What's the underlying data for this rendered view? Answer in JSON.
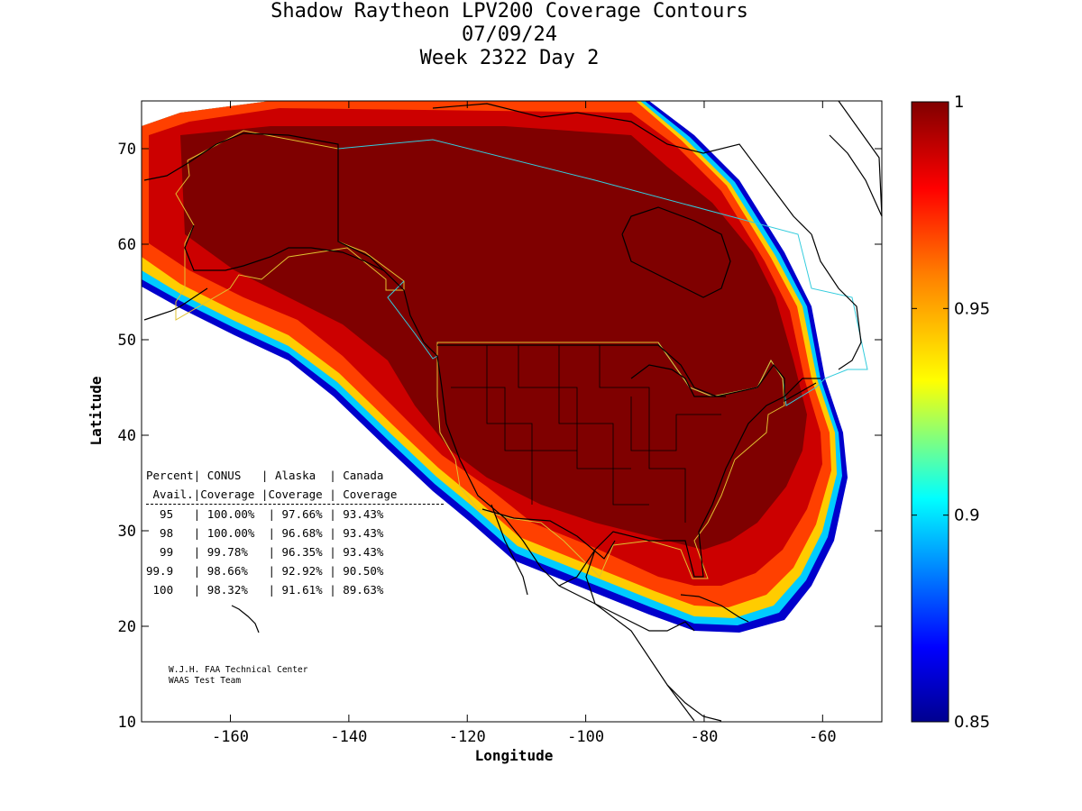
{
  "title": {
    "line1": "Shadow Raytheon LPV200 Coverage Contours",
    "line2": "07/09/24",
    "line3": "Week 2322 Day 2"
  },
  "chart_data": {
    "type": "heatmap",
    "title": "Shadow Raytheon LPV200 Coverage Contours",
    "xlabel": "Longitude",
    "ylabel": "Latitude",
    "xlim": [
      -175,
      -50
    ],
    "ylim": [
      10,
      75
    ],
    "x_ticks": [
      -160,
      -140,
      -120,
      -100,
      -80,
      -60
    ],
    "y_ticks": [
      10,
      20,
      30,
      40,
      50,
      60,
      70
    ],
    "colorbar": {
      "min": 0.85,
      "max": 1,
      "ticks": [
        0.85,
        0.9,
        0.95,
        1
      ],
      "tick_labels": [
        "0.85",
        "0.9",
        "0.95",
        "1"
      ]
    },
    "regions": [
      "CONUS",
      "Alaska",
      "Canada"
    ]
  },
  "stats_table": {
    "header1": "Percent| CONUS   | Alaska  | Canada",
    "header2": " Avail.|Coverage |Coverage | Coverage",
    "rows": [
      "  95   | 100.00%  | 97.66% | 93.43%",
      "  98   | 100.00%  | 96.68% | 93.43%",
      "  99   | 99.78%   | 96.35% | 93.43%",
      "99.9   | 98.66%   | 92.92% | 90.50%",
      " 100   | 98.32%   | 91.61% | 89.63%"
    ]
  },
  "credit": {
    "line1": "W.J.H. FAA Technical Center",
    "line2": "WAAS Test Team"
  },
  "colors": {
    "max": "#800000",
    "high": "#cc0000",
    "mid": "#ff6600",
    "low": "#00aaff",
    "min": "#000080"
  }
}
